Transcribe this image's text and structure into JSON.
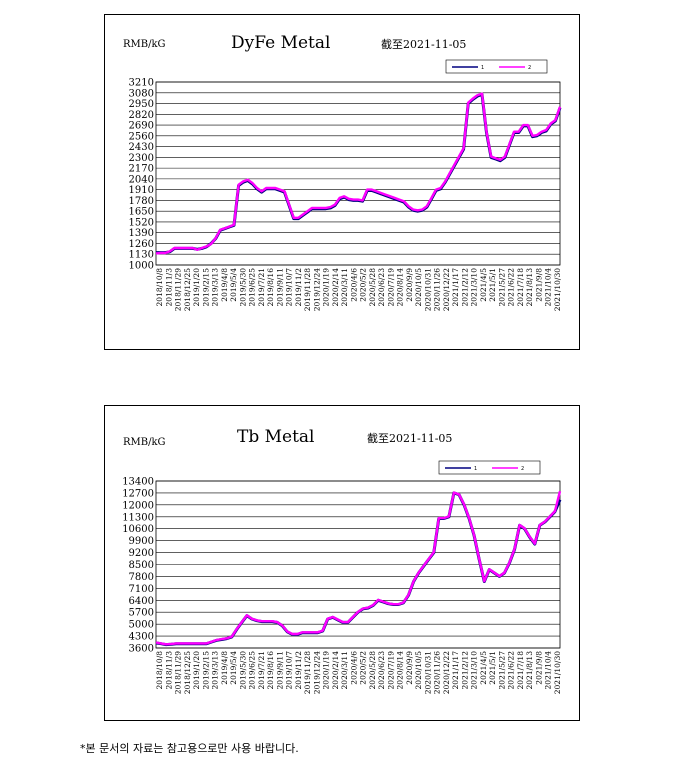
{
  "footnote": "*본 문서의 자료는 참고용으로만 사용 바랍니다.",
  "chart_data": [
    {
      "type": "line",
      "title": "DyFe Metal",
      "unit_label": "RMB/kG",
      "as_of": "截至2021-11-05",
      "ylim": [
        1000,
        3210
      ],
      "yticks": [
        1000,
        1130,
        1260,
        1390,
        1520,
        1650,
        1780,
        1910,
        2040,
        2170,
        2300,
        2430,
        2560,
        2690,
        2820,
        2950,
        3080,
        3210
      ],
      "xtick_labels": [
        "2018/10/8",
        "2018/11/3",
        "2018/11/29",
        "2018/12/25",
        "2019/1/20",
        "2019/2/15",
        "2019/3/13",
        "2019/4/8",
        "2019/5/4",
        "2019/5/30",
        "2019/6/25",
        "2019/7/21",
        "2019/8/16",
        "2019/9/11",
        "2019/10/7",
        "2019/11/2",
        "2019/11/28",
        "2019/12/24",
        "2020/1/19",
        "2020/2/14",
        "2020/3/11",
        "2020/4/6",
        "2020/5/2",
        "2020/5/28",
        "2020/6/23",
        "2020/7/19",
        "2020/8/14",
        "2020/9/9",
        "2020/10/5",
        "2020/10/31",
        "2020/11/26",
        "2020/12/22",
        "2021/1/17",
        "2021/2/12",
        "2021/3/10",
        "2021/4/5",
        "2021/5/1",
        "2021/5/27",
        "2021/6/22",
        "2021/7/18",
        "2021/8/13",
        "2021/9/8",
        "2021/10/4",
        "2021/10/30"
      ],
      "grid": true,
      "legend": "top-right",
      "series": [
        {
          "name": "1",
          "color": "#000080",
          "values": [
            1150,
            1150,
            1150,
            1160,
            1200,
            1200,
            1200,
            1200,
            1200,
            1190,
            1200,
            1220,
            1260,
            1320,
            1420,
            1440,
            1460,
            1480,
            1960,
            2000,
            2020,
            1980,
            1920,
            1880,
            1920,
            1920,
            1920,
            1900,
            1880,
            1720,
            1560,
            1560,
            1600,
            1640,
            1680,
            1680,
            1680,
            1680,
            1690,
            1720,
            1800,
            1820,
            1790,
            1780,
            1780,
            1770,
            1900,
            1900,
            1880,
            1860,
            1840,
            1820,
            1800,
            1780,
            1760,
            1700,
            1660,
            1650,
            1660,
            1700,
            1800,
            1900,
            1920,
            2000,
            2100,
            2200,
            2300,
            2400,
            2950,
            3000,
            3040,
            3060,
            2600,
            2300,
            2280,
            2260,
            2300,
            2450,
            2600,
            2600,
            2680,
            2680,
            2550,
            2560,
            2600,
            2620,
            2700,
            2740,
            2900
          ]
        },
        {
          "name": "2",
          "color": "#ff00ff",
          "values": [
            1140,
            1145,
            1145,
            1165,
            1205,
            1205,
            1205,
            1205,
            1205,
            1185,
            1205,
            1225,
            1255,
            1325,
            1425,
            1445,
            1465,
            1485,
            1970,
            2010,
            2030,
            1990,
            1930,
            1890,
            1930,
            1930,
            1930,
            1910,
            1890,
            1730,
            1570,
            1570,
            1610,
            1650,
            1690,
            1690,
            1690,
            1690,
            1700,
            1730,
            1810,
            1830,
            1800,
            1790,
            1790,
            1780,
            1910,
            1910,
            1890,
            1870,
            1850,
            1830,
            1810,
            1790,
            1770,
            1710,
            1670,
            1660,
            1670,
            1710,
            1810,
            1910,
            1930,
            2010,
            2110,
            2210,
            2310,
            2410,
            2960,
            3010,
            3050,
            3070,
            2610,
            2310,
            2290,
            2270,
            2310,
            2460,
            2610,
            2610,
            2690,
            2690,
            2560,
            2570,
            2610,
            2630,
            2710,
            2750,
            2910
          ]
        }
      ]
    },
    {
      "type": "line",
      "title": "Tb Metal",
      "unit_label": "RMB/kG",
      "as_of": "截至2021-11-05",
      "ylim": [
        3600,
        13400
      ],
      "yticks": [
        3600,
        4300,
        5000,
        5700,
        6400,
        7100,
        7800,
        8500,
        9200,
        9900,
        10600,
        11300,
        12000,
        12700,
        13400
      ],
      "xtick_labels": [
        "2018/10/8",
        "2018/11/3",
        "2018/11/29",
        "2018/12/25",
        "2019/1/20",
        "2019/2/15",
        "2019/3/13",
        "2019/4/8",
        "2019/5/4",
        "2019/5/30",
        "2019/6/25",
        "2019/7/21",
        "2019/8/16",
        "2019/9/11",
        "2019/10/7",
        "2019/11/2",
        "2019/11/28",
        "2019/12/24",
        "2020/1/19",
        "2020/2/14",
        "2020/3/11",
        "2020/4/6",
        "2020/5/2",
        "2020/5/28",
        "2020/6/23",
        "2020/7/19",
        "2020/8/14",
        "2020/9/9",
        "2020/10/5",
        "2020/10/31",
        "2020/11/26",
        "2020/12/22",
        "2021/1/17",
        "2021/2/12",
        "2021/3/10",
        "2021/4/5",
        "2021/5/1",
        "2021/5/27",
        "2021/6/22",
        "2021/7/18",
        "2021/8/13",
        "2021/9/8",
        "2021/10/4",
        "2021/10/30"
      ],
      "grid": true,
      "legend": "top-right",
      "series": [
        {
          "name": "1",
          "color": "#000080",
          "values": [
            3900,
            3850,
            3800,
            3820,
            3850,
            3850,
            3850,
            3850,
            3850,
            3850,
            3850,
            3950,
            4050,
            4100,
            4150,
            4250,
            4700,
            5100,
            5500,
            5300,
            5200,
            5150,
            5150,
            5150,
            5100,
            4900,
            4550,
            4400,
            4400,
            4500,
            4500,
            4500,
            4500,
            4600,
            5300,
            5400,
            5250,
            5100,
            5100,
            5400,
            5700,
            5900,
            5950,
            6100,
            6400,
            6300,
            6200,
            6150,
            6150,
            6250,
            6700,
            7500,
            8000,
            8400,
            8800,
            9200,
            11200,
            11200,
            11300,
            12700,
            12600,
            12000,
            11200,
            10200,
            8800,
            7500,
            8200,
            8000,
            7800,
            8000,
            8600,
            9400,
            10800,
            10600,
            10100,
            9700,
            10800,
            11000,
            11300,
            11600,
            12300
          ]
        },
        {
          "name": "2",
          "color": "#ff00ff",
          "values": [
            3920,
            3870,
            3820,
            3840,
            3870,
            3870,
            3870,
            3870,
            3870,
            3870,
            3870,
            3970,
            4070,
            4120,
            4170,
            4270,
            4720,
            5120,
            5520,
            5320,
            5220,
            5170,
            5170,
            5170,
            5120,
            4920,
            4570,
            4420,
            4420,
            4520,
            4520,
            4520,
            4520,
            4620,
            5320,
            5420,
            5270,
            5120,
            5120,
            5420,
            5720,
            5920,
            5970,
            6120,
            6420,
            6320,
            6220,
            6170,
            6170,
            6270,
            6720,
            7520,
            8020,
            8420,
            8820,
            9220,
            11220,
            11220,
            11320,
            12720,
            12620,
            12020,
            11220,
            10220,
            8820,
            7520,
            8220,
            8020,
            7820,
            8020,
            8620,
            9420,
            10820,
            10620,
            10120,
            9720,
            10820,
            11020,
            11320,
            11620,
            12800
          ]
        }
      ]
    }
  ]
}
